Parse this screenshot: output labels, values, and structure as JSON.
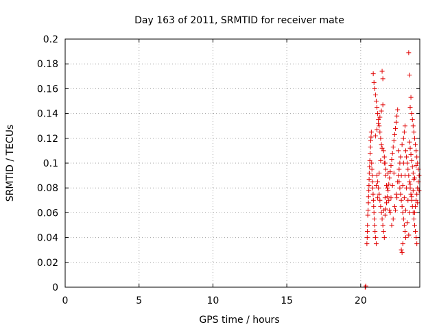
{
  "chart_data": {
    "type": "scatter",
    "title": "Day 163 of 2011, SRMTID for receiver mate",
    "xlabel": "GPS time / hours",
    "ylabel": "SRMTID / TECUs",
    "xlim": [
      0,
      24
    ],
    "ylim": [
      0,
      0.2
    ],
    "xticks": [
      0,
      5,
      10,
      15,
      20
    ],
    "xtick_labels": [
      "0",
      "5",
      "10",
      "15",
      "20"
    ],
    "yticks": [
      0,
      0.02,
      0.04,
      0.06,
      0.08,
      0.1,
      0.12,
      0.14,
      0.16,
      0.18,
      0.2
    ],
    "ytick_labels": [
      "0",
      "0.02",
      "0.04",
      "0.06",
      "0.08",
      "0.1",
      "0.12",
      "0.14",
      "0.16",
      "0.18",
      "0.2"
    ],
    "grid": true,
    "marker": "+",
    "color": "#e00000",
    "series": [
      {
        "points": [
          [
            20.3,
            0.0
          ],
          [
            20.32,
            0.0
          ],
          [
            20.35,
            0.001
          ],
          [
            20.42,
            0.035
          ],
          [
            20.44,
            0.04
          ],
          [
            20.45,
            0.045
          ],
          [
            20.46,
            0.05
          ],
          [
            20.48,
            0.058
          ],
          [
            20.5,
            0.062
          ],
          [
            20.52,
            0.068
          ],
          [
            20.53,
            0.073
          ],
          [
            20.55,
            0.078
          ],
          [
            20.56,
            0.082
          ],
          [
            20.57,
            0.087
          ],
          [
            20.58,
            0.092
          ],
          [
            20.6,
            0.097
          ],
          [
            20.62,
            0.102
          ],
          [
            20.64,
            0.108
          ],
          [
            20.66,
            0.113
          ],
          [
            20.68,
            0.118
          ],
          [
            20.7,
            0.121
          ],
          [
            20.72,
            0.125
          ],
          [
            20.74,
            0.1
          ],
          [
            20.76,
            0.095
          ],
          [
            20.78,
            0.09
          ],
          [
            20.8,
            0.085
          ],
          [
            20.82,
            0.08
          ],
          [
            20.84,
            0.075
          ],
          [
            20.86,
            0.07
          ],
          [
            20.88,
            0.065
          ],
          [
            20.9,
            0.06
          ],
          [
            20.92,
            0.055
          ],
          [
            20.95,
            0.05
          ],
          [
            20.97,
            0.045
          ],
          [
            21.0,
            0.04
          ],
          [
            21.05,
            0.035
          ],
          [
            20.85,
            0.172
          ],
          [
            20.9,
            0.165
          ],
          [
            20.95,
            0.16
          ],
          [
            21.0,
            0.155
          ],
          [
            21.05,
            0.15
          ],
          [
            21.1,
            0.145
          ],
          [
            21.15,
            0.14
          ],
          [
            21.2,
            0.135
          ],
          [
            21.25,
            0.13
          ],
          [
            21.3,
            0.125
          ],
          [
            21.35,
            0.12
          ],
          [
            21.4,
            0.115
          ],
          [
            21.45,
            0.174
          ],
          [
            21.5,
            0.168
          ],
          [
            21.55,
            0.11
          ],
          [
            21.6,
            0.105
          ],
          [
            21.65,
            0.1
          ],
          [
            21.7,
            0.095
          ],
          [
            21.1,
            0.09
          ],
          [
            21.15,
            0.085
          ],
          [
            21.2,
            0.08
          ],
          [
            21.25,
            0.075
          ],
          [
            21.3,
            0.07
          ],
          [
            21.35,
            0.065
          ],
          [
            21.4,
            0.06
          ],
          [
            21.45,
            0.055
          ],
          [
            21.5,
            0.05
          ],
          [
            21.55,
            0.045
          ],
          [
            21.6,
            0.04
          ],
          [
            21.65,
            0.058
          ],
          [
            21.7,
            0.063
          ],
          [
            21.75,
            0.068
          ],
          [
            21.8,
            0.073
          ],
          [
            21.85,
            0.078
          ],
          [
            21.9,
            0.083
          ],
          [
            21.95,
            0.088
          ],
          [
            22.0,
            0.093
          ],
          [
            22.05,
            0.098
          ],
          [
            22.1,
            0.103
          ],
          [
            22.15,
            0.108
          ],
          [
            22.2,
            0.113
          ],
          [
            22.25,
            0.118
          ],
          [
            22.3,
            0.123
          ],
          [
            22.35,
            0.128
          ],
          [
            22.4,
            0.133
          ],
          [
            22.45,
            0.138
          ],
          [
            22.5,
            0.143
          ],
          [
            22.55,
            0.09
          ],
          [
            22.6,
            0.085
          ],
          [
            22.65,
            0.08
          ],
          [
            22.7,
            0.075
          ],
          [
            22.75,
            0.07
          ],
          [
            22.8,
            0.065
          ],
          [
            22.85,
            0.06
          ],
          [
            22.9,
            0.055
          ],
          [
            22.95,
            0.05
          ],
          [
            23.0,
            0.045
          ],
          [
            23.05,
            0.04
          ],
          [
            22.75,
            0.03
          ],
          [
            22.8,
            0.028
          ],
          [
            22.85,
            0.035
          ],
          [
            22.9,
            0.12
          ],
          [
            22.95,
            0.125
          ],
          [
            23.0,
            0.13
          ],
          [
            23.05,
            0.11
          ],
          [
            23.1,
            0.105
          ],
          [
            23.15,
            0.1
          ],
          [
            23.2,
            0.095
          ],
          [
            23.25,
            0.09
          ],
          [
            23.3,
            0.085
          ],
          [
            23.35,
            0.08
          ],
          [
            23.4,
            0.075
          ],
          [
            23.45,
            0.07
          ],
          [
            23.5,
            0.065
          ],
          [
            23.55,
            0.06
          ],
          [
            23.6,
            0.055
          ],
          [
            23.65,
            0.05
          ],
          [
            23.7,
            0.045
          ],
          [
            23.75,
            0.04
          ],
          [
            23.8,
            0.035
          ],
          [
            23.25,
            0.189
          ],
          [
            23.3,
            0.171
          ],
          [
            23.35,
            0.145
          ],
          [
            23.4,
            0.153
          ],
          [
            23.45,
            0.14
          ],
          [
            23.5,
            0.135
          ],
          [
            23.55,
            0.13
          ],
          [
            23.6,
            0.125
          ],
          [
            23.65,
            0.12
          ],
          [
            23.7,
            0.115
          ],
          [
            23.75,
            0.11
          ],
          [
            23.8,
            0.105
          ],
          [
            23.85,
            0.1
          ],
          [
            23.9,
            0.095
          ],
          [
            23.95,
            0.09
          ],
          [
            23.9,
            0.085
          ],
          [
            23.85,
            0.08
          ],
          [
            23.8,
            0.075
          ],
          [
            23.75,
            0.07
          ],
          [
            23.7,
            0.065
          ],
          [
            23.65,
            0.06
          ],
          [
            23.6,
            0.087
          ],
          [
            23.55,
            0.092
          ],
          [
            23.5,
            0.097
          ],
          [
            23.45,
            0.102
          ],
          [
            23.4,
            0.107
          ],
          [
            23.35,
            0.112
          ],
          [
            23.3,
            0.117
          ],
          [
            21.0,
            0.122
          ],
          [
            21.1,
            0.127
          ],
          [
            21.2,
            0.132
          ],
          [
            21.3,
            0.137
          ],
          [
            21.4,
            0.142
          ],
          [
            21.5,
            0.147
          ],
          [
            21.6,
            0.1
          ],
          [
            21.7,
            0.09
          ],
          [
            21.8,
            0.08
          ],
          [
            21.9,
            0.07
          ],
          [
            22.0,
            0.06
          ],
          [
            22.1,
            0.05
          ],
          [
            22.2,
            0.055
          ],
          [
            22.3,
            0.065
          ],
          [
            22.4,
            0.075
          ],
          [
            22.5,
            0.085
          ],
          [
            22.6,
            0.095
          ],
          [
            22.7,
            0.105
          ],
          [
            22.8,
            0.115
          ],
          [
            22.9,
            0.1
          ],
          [
            23.0,
            0.09
          ],
          [
            23.1,
            0.08
          ],
          [
            23.2,
            0.07
          ],
          [
            23.3,
            0.06
          ],
          [
            21.05,
            0.082
          ],
          [
            21.15,
            0.072
          ],
          [
            21.25,
            0.092
          ],
          [
            21.35,
            0.102
          ],
          [
            21.45,
            0.112
          ],
          [
            21.55,
            0.062
          ],
          [
            21.65,
            0.072
          ],
          [
            21.75,
            0.082
          ],
          [
            21.85,
            0.092
          ],
          [
            21.95,
            0.062
          ],
          [
            22.05,
            0.072
          ],
          [
            22.15,
            0.082
          ],
          [
            22.25,
            0.092
          ],
          [
            22.35,
            0.062
          ],
          [
            22.45,
            0.072
          ],
          [
            22.55,
            0.11
          ],
          [
            22.65,
            0.1
          ],
          [
            22.75,
            0.09
          ],
          [
            22.85,
            0.082
          ],
          [
            22.95,
            0.072
          ],
          [
            23.05,
            0.062
          ],
          [
            23.15,
            0.052
          ],
          [
            23.25,
            0.042
          ],
          [
            23.35,
            0.083
          ],
          [
            23.45,
            0.073
          ],
          [
            23.55,
            0.078
          ],
          [
            23.65,
            0.088
          ],
          [
            23.75,
            0.098
          ],
          [
            23.85,
            0.068
          ],
          [
            23.95,
            0.078
          ]
        ]
      }
    ]
  }
}
